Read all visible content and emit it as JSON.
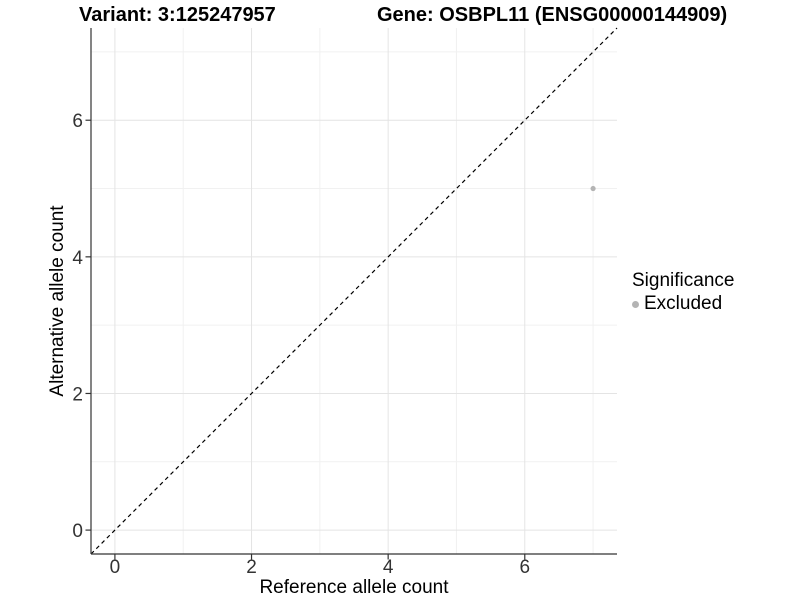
{
  "header": {
    "variant_title": "Variant: 3:125247957",
    "gene_title": "Gene: OSBPL11 (ENSG00000144909)"
  },
  "chart_data": {
    "type": "scatter",
    "xlabel": "Reference allele count",
    "ylabel": "Alternative allele count",
    "xlim": [
      -0.35,
      7.35
    ],
    "ylim": [
      -0.35,
      7.35
    ],
    "x_ticks": [
      0,
      2,
      4,
      6
    ],
    "y_ticks": [
      0,
      2,
      4,
      6
    ],
    "x_minor_ticks": [
      1,
      3,
      5,
      7
    ],
    "y_minor_ticks": [
      1,
      3,
      5,
      7
    ],
    "grid": true,
    "series": [
      {
        "name": "Excluded",
        "color": "#b4b4b4",
        "points": [
          {
            "x": 7,
            "y": 5
          }
        ]
      }
    ],
    "reference_line": {
      "type": "identity",
      "equation": "y = x",
      "style": "dashed",
      "color": "#000000"
    },
    "legend": {
      "title": "Significance",
      "position": "right",
      "items": [
        {
          "label": "Excluded",
          "color": "#b4b4b4",
          "marker": "circle"
        }
      ]
    }
  },
  "colors": {
    "background": "#ffffff",
    "grid_major": "#e4e4e4",
    "grid_minor": "#f1f1f1",
    "axis_line": "#333333",
    "tick_mark": "#333333",
    "tick_label": "#333333",
    "point": "#b4b4b4"
  }
}
